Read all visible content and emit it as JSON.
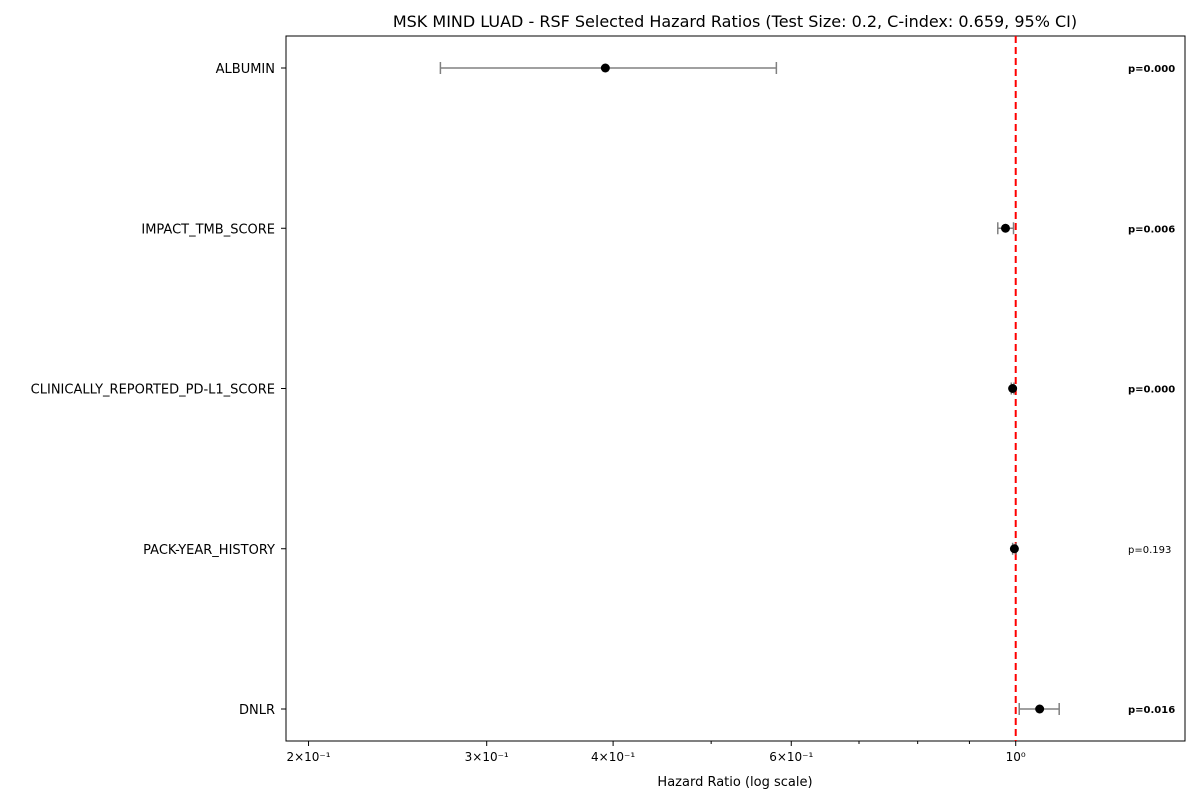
{
  "chart_data": {
    "type": "scatter",
    "title": "MSK MIND LUAD - RSF Selected Hazard Ratios (Test Size: 0.2, C-index: 0.659, 95% CI)",
    "xlabel": "Hazard Ratio (log scale)",
    "ylabel": "",
    "x_scale": "log",
    "xlim": [
      0.19,
      1.47
    ],
    "x_ticks": [
      {
        "value": 0.2,
        "label": "2×10⁻¹"
      },
      {
        "value": 0.3,
        "label": "3×10⁻¹"
      },
      {
        "value": 0.4,
        "label": "4×10⁻¹"
      },
      {
        "value": 0.6,
        "label": "6×10⁻¹"
      },
      {
        "value": 1.0,
        "label": "10⁰"
      }
    ],
    "x_minor_ticks": [
      0.5,
      0.7,
      0.8,
      0.9
    ],
    "reference_line": {
      "value": 1.0,
      "color": "#ff0000",
      "style": "dashed"
    },
    "grid": false,
    "marker_color": "#000000",
    "errorbar_color": "#808080",
    "features": [
      {
        "label": "ALBUMIN",
        "hr": 0.393,
        "ci_low": 0.27,
        "ci_high": 0.58,
        "p_text": "p=0.000",
        "significant": true
      },
      {
        "label": "IMPACT_TMB_SCORE",
        "hr": 0.977,
        "ci_low": 0.96,
        "ci_high": 0.995,
        "p_text": "p=0.006",
        "significant": true
      },
      {
        "label": "CLINICALLY_REPORTED_PD-L1_SCORE",
        "hr": 0.993,
        "ci_low": 0.99,
        "ci_high": 0.996,
        "p_text": "p=0.000",
        "significant": true
      },
      {
        "label": "PACK-YEAR_HISTORY",
        "hr": 0.997,
        "ci_low": 0.993,
        "ci_high": 1.001,
        "p_text": "p=0.193",
        "significant": false
      },
      {
        "label": "DNLR",
        "hr": 1.056,
        "ci_low": 1.008,
        "ci_high": 1.104,
        "p_text": "p=0.016",
        "significant": true
      }
    ]
  }
}
